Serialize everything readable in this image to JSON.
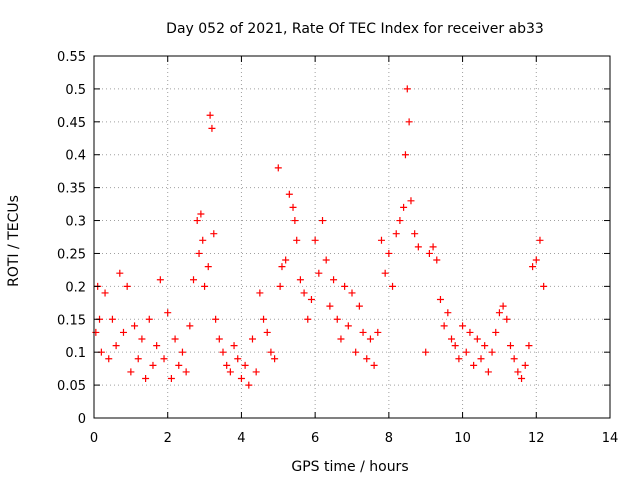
{
  "chart_data": {
    "type": "scatter",
    "title": "Day 052 of 2021, Rate Of TEC Index for receiver ab33",
    "xlabel": "GPS time / hours",
    "ylabel": "ROTI / TECUs",
    "xlim": [
      0,
      14
    ],
    "ylim": [
      0,
      0.55
    ],
    "x_ticks": [
      "0",
      "2",
      "4",
      "6",
      "8",
      "10",
      "12",
      "14"
    ],
    "y_ticks": [
      "0",
      "0.05",
      "0.1",
      "0.15",
      "0.2",
      "0.25",
      "0.3",
      "0.35",
      "0.4",
      "0.45",
      "0.5",
      "0.55"
    ],
    "grid": true,
    "marker": "+",
    "color": "#ff0000",
    "series": [
      {
        "x": [
          0.05,
          0.1,
          0.15,
          0.2,
          0.3,
          0.4,
          0.5,
          0.6,
          0.7,
          0.8,
          0.9,
          1.0,
          1.1,
          1.2,
          1.3,
          1.4,
          1.5,
          1.6,
          1.7,
          1.8,
          1.9,
          2.0,
          2.1,
          2.2,
          2.3,
          2.4,
          2.5,
          2.6,
          2.7,
          2.8,
          2.85,
          2.9,
          2.95,
          3.0,
          3.1,
          3.15,
          3.2,
          3.25,
          3.3,
          3.4,
          3.5,
          3.6,
          3.7,
          3.8,
          3.9,
          4.0,
          4.1,
          4.2,
          4.3,
          4.4,
          4.5,
          4.6,
          4.7,
          4.8,
          4.9,
          5.0,
          5.05,
          5.1,
          5.2,
          5.3,
          5.4,
          5.45,
          5.5,
          5.6,
          5.7,
          5.8,
          5.9,
          6.0,
          6.1,
          6.2,
          6.3,
          6.4,
          6.5,
          6.6,
          6.7,
          6.8,
          6.9,
          7.0,
          7.1,
          7.2,
          7.3,
          7.4,
          7.5,
          7.6,
          7.7,
          7.8,
          7.9,
          8.0,
          8.1,
          8.2,
          8.3,
          8.4,
          8.45,
          8.5,
          8.55,
          8.6,
          8.7,
          8.8,
          9.0,
          9.1,
          9.2,
          9.3,
          9.4,
          9.5,
          9.6,
          9.7,
          9.8,
          9.9,
          10.0,
          10.1,
          10.2,
          10.3,
          10.4,
          10.5,
          10.6,
          10.7,
          10.8,
          10.9,
          11.0,
          11.1,
          11.2,
          11.3,
          11.4,
          11.5,
          11.6,
          11.7,
          11.8,
          11.9,
          12.0,
          12.1,
          12.2
        ],
        "y": [
          0.13,
          0.2,
          0.15,
          0.1,
          0.19,
          0.09,
          0.15,
          0.11,
          0.22,
          0.13,
          0.2,
          0.07,
          0.14,
          0.09,
          0.12,
          0.06,
          0.15,
          0.08,
          0.11,
          0.21,
          0.09,
          0.16,
          0.06,
          0.12,
          0.08,
          0.1,
          0.07,
          0.14,
          0.21,
          0.3,
          0.25,
          0.31,
          0.27,
          0.2,
          0.23,
          0.46,
          0.44,
          0.28,
          0.15,
          0.12,
          0.1,
          0.08,
          0.07,
          0.11,
          0.09,
          0.06,
          0.08,
          0.05,
          0.12,
          0.07,
          0.19,
          0.15,
          0.13,
          0.1,
          0.09,
          0.38,
          0.2,
          0.23,
          0.24,
          0.34,
          0.32,
          0.3,
          0.27,
          0.21,
          0.19,
          0.15,
          0.18,
          0.27,
          0.22,
          0.3,
          0.24,
          0.17,
          0.21,
          0.15,
          0.12,
          0.2,
          0.14,
          0.19,
          0.1,
          0.17,
          0.13,
          0.09,
          0.12,
          0.08,
          0.13,
          0.27,
          0.22,
          0.25,
          0.2,
          0.28,
          0.3,
          0.32,
          0.4,
          0.5,
          0.45,
          0.33,
          0.28,
          0.26,
          0.1,
          0.25,
          0.26,
          0.24,
          0.18,
          0.14,
          0.16,
          0.12,
          0.11,
          0.09,
          0.14,
          0.1,
          0.13,
          0.08,
          0.12,
          0.09,
          0.11,
          0.07,
          0.1,
          0.13,
          0.16,
          0.17,
          0.15,
          0.11,
          0.09,
          0.07,
          0.06,
          0.08,
          0.11,
          0.23,
          0.24,
          0.27,
          0.2
        ]
      }
    ]
  }
}
